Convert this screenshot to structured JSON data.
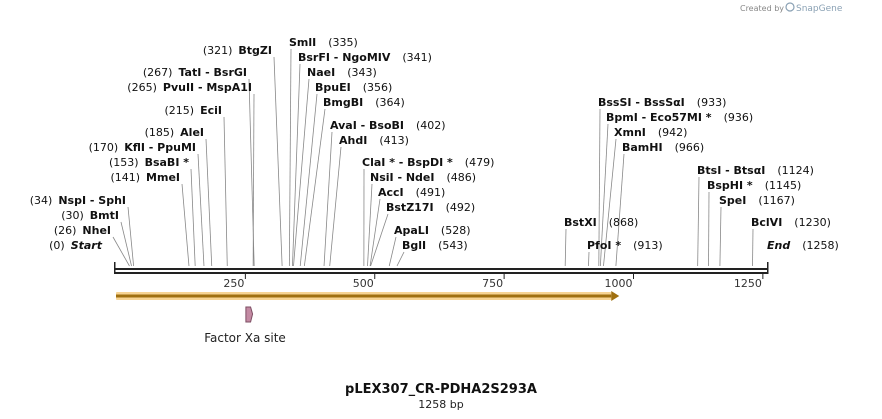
{
  "credit": {
    "prefix": "Created by",
    "brand": "SnapGene"
  },
  "map": {
    "name": "pLEX307_CR-PDHA2S293A",
    "length_label": "1258 bp",
    "length": 1258,
    "ticks": [
      250,
      500,
      750,
      1000,
      1250
    ],
    "tick_labels": [
      "250",
      "500",
      "750",
      "1000",
      "1250"
    ]
  },
  "sites": [
    {
      "text": "Start",
      "pos": "(0)",
      "bp": 0,
      "italic": true
    },
    {
      "text": "NheI",
      "pos": "(26)",
      "bp": 26
    },
    {
      "text": "BmtI",
      "pos": "(30)",
      "bp": 30
    },
    {
      "text": "NspI - SphI",
      "pos": "(34)",
      "bp": 34
    },
    {
      "text": "MmeI",
      "pos": "(141)",
      "bp": 141
    },
    {
      "text": "BsaBI *",
      "pos": "(153)",
      "bp": 153
    },
    {
      "text": "KflI - PpuMI",
      "pos": "(170)",
      "bp": 170
    },
    {
      "text": "AleI",
      "pos": "(185)",
      "bp": 185
    },
    {
      "text": "EciI",
      "pos": "(215)",
      "bp": 215
    },
    {
      "text": "PvuII - MspA1I",
      "pos": "(265)",
      "bp": 265
    },
    {
      "text": "TatI - BsrGI",
      "pos": "(267)",
      "bp": 267
    },
    {
      "text": "BtgZI",
      "pos": "(321)",
      "bp": 321
    },
    {
      "text": "SmlI",
      "pos": "(335)",
      "bp": 335
    },
    {
      "text": "BsrFI - NgoMIV",
      "pos": "(341)",
      "bp": 341
    },
    {
      "text": "NaeI",
      "pos": "(343)",
      "bp": 343
    },
    {
      "text": "BpuEI",
      "pos": "(356)",
      "bp": 356
    },
    {
      "text": "BmgBI",
      "pos": "(364)",
      "bp": 364
    },
    {
      "text": "AvaI - BsoBI",
      "pos": "(402)",
      "bp": 402
    },
    {
      "text": "AhdI",
      "pos": "(413)",
      "bp": 413
    },
    {
      "text": "ClaI * - BspDI *",
      "pos": "(479)",
      "bp": 479
    },
    {
      "text": "NsiI - NdeI",
      "pos": "(486)",
      "bp": 486
    },
    {
      "text": "AccI",
      "pos": "(491)",
      "bp": 491
    },
    {
      "text": "BstZ17I",
      "pos": "(492)",
      "bp": 492
    },
    {
      "text": "ApaLI",
      "pos": "(528)",
      "bp": 528
    },
    {
      "text": "BglI",
      "pos": "(543)",
      "bp": 543
    },
    {
      "text": "BstXI",
      "pos": "(868)",
      "bp": 868
    },
    {
      "text": "PfoI *",
      "pos": "(913)",
      "bp": 913
    },
    {
      "text": "BssSI - BssSαI",
      "pos": "(933)",
      "bp": 933
    },
    {
      "text": "BpmI - Eco57MI *",
      "pos": "(936)",
      "bp": 936
    },
    {
      "text": "XmnI",
      "pos": "(942)",
      "bp": 942
    },
    {
      "text": "BamHI",
      "pos": "(966)",
      "bp": 966
    },
    {
      "text": "BtsI - BtsαI",
      "pos": "(1124)",
      "bp": 1124
    },
    {
      "text": "BspHI *",
      "pos": "(1145)",
      "bp": 1145
    },
    {
      "text": "SpeI",
      "pos": "(1167)",
      "bp": 1167
    },
    {
      "text": "BclVI",
      "pos": "(1230)",
      "bp": 1230
    },
    {
      "text": "End",
      "pos": "(1258)",
      "bp": 1258,
      "italic": true
    }
  ],
  "features": [
    {
      "label": "Factor Xa site",
      "start_bp": 251,
      "end_bp": 262,
      "color": "#c38aa3"
    }
  ],
  "orf": {
    "start_bp": 0,
    "end_bp": 957,
    "color": "#f1b13c"
  },
  "colors": {
    "backbone": "#222222",
    "leader": "#888888"
  }
}
